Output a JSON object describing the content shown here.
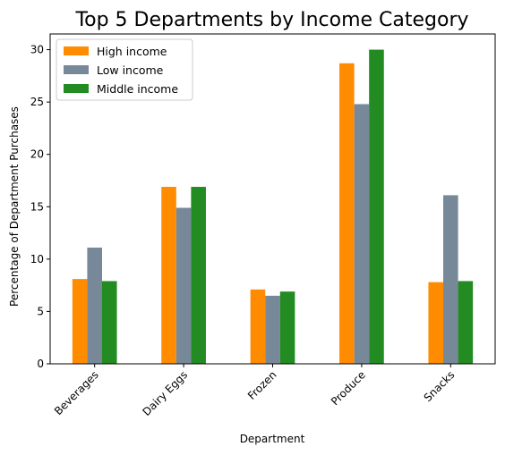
{
  "chart_data": {
    "type": "bar",
    "title": "Top 5 Departments by Income Category",
    "xlabel": "Department",
    "ylabel": "Percentage of Department Purchases",
    "categories": [
      "Beverages",
      "Dairy Eggs",
      "Frozen",
      "Produce",
      "Snacks"
    ],
    "series": [
      {
        "name": "High income",
        "color": "#ff8c00",
        "values": [
          8.1,
          16.9,
          7.1,
          28.7,
          7.8
        ]
      },
      {
        "name": "Low income",
        "color": "#778899",
        "values": [
          11.1,
          14.9,
          6.5,
          24.8,
          16.1
        ]
      },
      {
        "name": "Middle income",
        "color": "#228b22",
        "values": [
          7.9,
          16.9,
          6.9,
          30.0,
          7.9
        ]
      }
    ],
    "ylim": [
      0,
      31.5
    ],
    "yticks": [
      0,
      5,
      10,
      15,
      20,
      25,
      30
    ],
    "grid": false,
    "legend_position": "top-left"
  }
}
